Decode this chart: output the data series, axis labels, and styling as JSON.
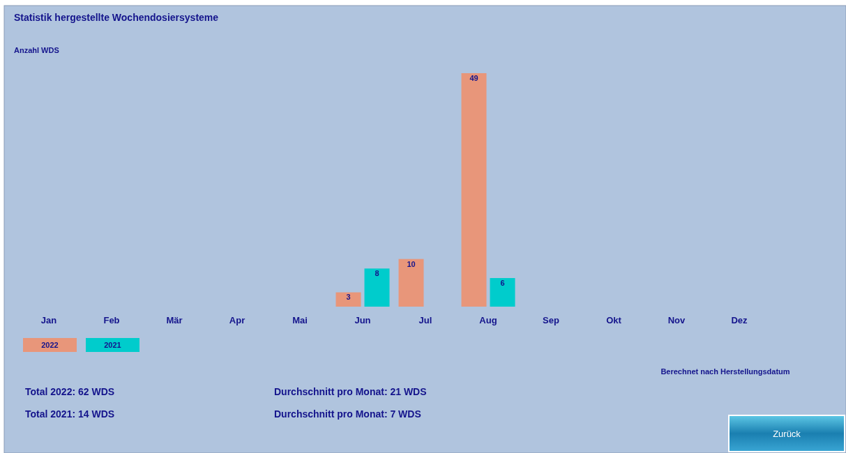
{
  "chart_data": {
    "type": "bar",
    "title": "Statistik hergestellte Wochendosiersysteme",
    "ylabel": "Anzahl WDS",
    "categories": [
      "Jan",
      "Feb",
      "Mär",
      "Apr",
      "Mai",
      "Jun",
      "Jul",
      "Aug",
      "Sep",
      "Okt",
      "Nov",
      "Dez"
    ],
    "series": [
      {
        "name": "2022",
        "color": "#e8967a",
        "values": [
          0,
          0,
          0,
          0,
          0,
          3,
          10,
          49,
          0,
          0,
          0,
          0
        ],
        "value_labels": [
          null,
          null,
          null,
          null,
          null,
          "3",
          "10",
          "49",
          null,
          null,
          null,
          null
        ]
      },
      {
        "name": "2021",
        "color": "#00cccc",
        "values": [
          0,
          0,
          0,
          0,
          0,
          8,
          0,
          6,
          0,
          0,
          0,
          0
        ],
        "value_labels": [
          null,
          null,
          null,
          null,
          null,
          "8",
          null,
          "6",
          null,
          null,
          null,
          null
        ]
      }
    ],
    "legend": "bottom left",
    "annotations": [
      "Berechnet nach Herstellungsdatum",
      "Total 2022: 62 WDS",
      "Durchschnitt pro Monat: 21 WDS",
      "Total 2021: 14 WDS",
      "Durchschnitt pro Monat: 7 WDS",
      "Zurück"
    ]
  }
}
